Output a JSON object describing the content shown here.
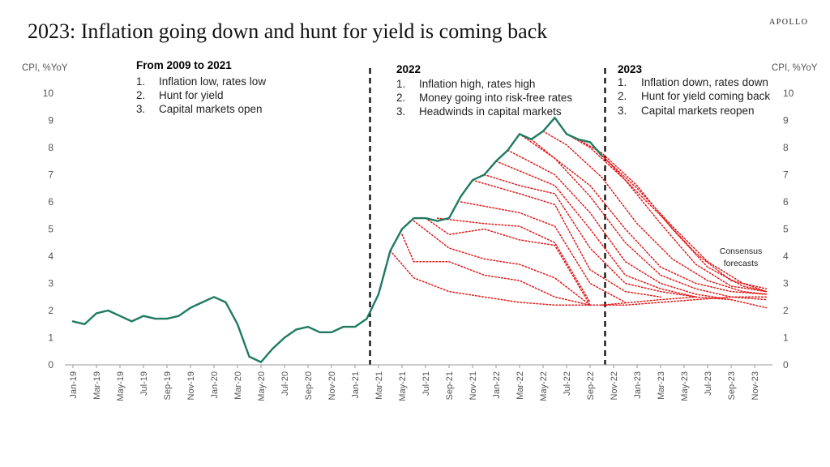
{
  "title": "2023: Inflation going down and hunt for yield is coming back",
  "brand": "APOLLO",
  "colors": {
    "actual": "#1f7a62",
    "forecast": "#e01a1a",
    "text": "#222222",
    "axis": "#777777",
    "divider": "#000000"
  },
  "chart_data": {
    "type": "line",
    "ylabel_left": "CPI, %YoY",
    "ylabel_right": "CPI, %YoY",
    "ylim": [
      0,
      10
    ],
    "yticks": [
      0,
      1,
      2,
      3,
      4,
      5,
      6,
      7,
      8,
      9,
      10
    ],
    "x_range": [
      "2019-01",
      "2023-12"
    ],
    "x_tick_labels": [
      "Jan-19",
      "Mar-19",
      "May-19",
      "Jul-19",
      "Sep-19",
      "Nov-19",
      "Jan-20",
      "Mar-20",
      "May-20",
      "Jul-20",
      "Sep-20",
      "Nov-20",
      "Jan-21",
      "Mar-21",
      "May-21",
      "Jul-21",
      "Sep-21",
      "Nov-21",
      "Jan-22",
      "Mar-22",
      "May-22",
      "Jul-22",
      "Sep-22",
      "Nov-22",
      "Jan-23",
      "Mar-23",
      "May-23",
      "Jul-23",
      "Sep-23",
      "Nov-23"
    ],
    "grid": false,
    "actual": {
      "x": [
        "2019-01",
        "2019-02",
        "2019-03",
        "2019-04",
        "2019-05",
        "2019-06",
        "2019-07",
        "2019-08",
        "2019-09",
        "2019-10",
        "2019-11",
        "2019-12",
        "2020-01",
        "2020-02",
        "2020-03",
        "2020-04",
        "2020-05",
        "2020-06",
        "2020-07",
        "2020-08",
        "2020-09",
        "2020-10",
        "2020-11",
        "2020-12",
        "2021-01",
        "2021-02",
        "2021-03",
        "2021-04",
        "2021-05",
        "2021-06",
        "2021-07",
        "2021-08",
        "2021-09",
        "2021-10",
        "2021-11",
        "2021-12",
        "2022-01",
        "2022-02",
        "2022-03",
        "2022-04",
        "2022-05",
        "2022-06",
        "2022-07",
        "2022-08",
        "2022-09",
        "2022-10"
      ],
      "y": [
        1.6,
        1.5,
        1.9,
        2.0,
        1.8,
        1.6,
        1.8,
        1.7,
        1.7,
        1.8,
        2.1,
        2.3,
        2.5,
        2.3,
        1.5,
        0.3,
        0.1,
        0.6,
        1.0,
        1.3,
        1.4,
        1.2,
        1.2,
        1.4,
        1.4,
        1.7,
        2.6,
        4.2,
        5.0,
        5.4,
        5.4,
        5.3,
        5.4,
        6.2,
        6.8,
        7.0,
        7.5,
        7.9,
        8.5,
        8.3,
        8.6,
        9.1,
        8.5,
        8.3,
        8.2,
        7.7
      ]
    },
    "forecasts": [
      {
        "x": [
          "2021-04",
          "2021-06",
          "2021-09",
          "2021-12",
          "2022-03",
          "2022-06",
          "2022-09"
        ],
        "y": [
          4.2,
          3.2,
          2.7,
          2.5,
          2.3,
          2.2,
          2.2
        ]
      },
      {
        "x": [
          "2021-05",
          "2021-06",
          "2021-09",
          "2021-12",
          "2022-03",
          "2022-06",
          "2022-09"
        ],
        "y": [
          4.8,
          3.8,
          3.8,
          3.3,
          3.1,
          2.5,
          2.2
        ]
      },
      {
        "x": [
          "2021-06",
          "2021-09",
          "2021-12",
          "2022-03",
          "2022-06",
          "2022-09"
        ],
        "y": [
          5.3,
          4.3,
          3.9,
          3.7,
          3.2,
          2.2
        ]
      },
      {
        "x": [
          "2021-07",
          "2021-09",
          "2021-12",
          "2022-03",
          "2022-06",
          "2022-09"
        ],
        "y": [
          5.4,
          4.8,
          5.0,
          4.6,
          4.4,
          2.2
        ]
      },
      {
        "x": [
          "2021-08",
          "2021-12",
          "2022-03",
          "2022-06",
          "2022-09"
        ],
        "y": [
          5.4,
          5.2,
          5.1,
          4.5,
          2.3
        ]
      },
      {
        "x": [
          "2021-10",
          "2022-03",
          "2022-06",
          "2022-09",
          "2022-12"
        ],
        "y": [
          6.0,
          5.6,
          5.1,
          3.0,
          2.3
        ]
      },
      {
        "x": [
          "2021-11",
          "2022-03",
          "2022-06",
          "2022-09",
          "2022-12",
          "2023-03"
        ],
        "y": [
          6.8,
          6.3,
          5.9,
          3.5,
          2.7,
          2.5
        ]
      },
      {
        "x": [
          "2021-12",
          "2022-03",
          "2022-06",
          "2022-09",
          "2022-12",
          "2023-03",
          "2023-06"
        ],
        "y": [
          7.0,
          6.6,
          6.3,
          4.3,
          3.0,
          2.7,
          2.5
        ]
      },
      {
        "x": [
          "2022-01",
          "2022-06",
          "2022-09",
          "2022-12",
          "2023-03",
          "2023-06"
        ],
        "y": [
          7.5,
          6.6,
          5.0,
          3.3,
          2.8,
          2.5
        ]
      },
      {
        "x": [
          "2022-02",
          "2022-06",
          "2022-09",
          "2022-12",
          "2023-03",
          "2023-06",
          "2023-09"
        ],
        "y": [
          7.9,
          7.0,
          5.6,
          3.8,
          3.0,
          2.6,
          2.4
        ]
      },
      {
        "x": [
          "2022-03",
          "2022-06",
          "2022-09",
          "2022-12",
          "2023-03",
          "2023-06",
          "2023-09",
          "2023-12"
        ],
        "y": [
          8.5,
          7.6,
          6.2,
          4.5,
          3.3,
          2.8,
          2.5,
          2.4
        ]
      },
      {
        "x": [
          "2022-04",
          "2022-06",
          "2022-09",
          "2022-12",
          "2023-03",
          "2023-06",
          "2023-09",
          "2023-12"
        ],
        "y": [
          8.3,
          7.6,
          6.6,
          5.0,
          3.6,
          3.0,
          2.7,
          2.6
        ]
      },
      {
        "x": [
          "2022-05",
          "2022-07",
          "2022-10",
          "2023-01",
          "2023-04",
          "2023-07",
          "2023-10",
          "2023-12"
        ],
        "y": [
          8.6,
          8.1,
          6.9,
          5.2,
          3.9,
          3.1,
          2.7,
          2.6
        ]
      },
      {
        "x": [
          "2022-07",
          "2022-09",
          "2022-12",
          "2023-03",
          "2023-06",
          "2023-09",
          "2023-12"
        ],
        "y": [
          8.5,
          8.0,
          6.8,
          5.2,
          3.7,
          2.9,
          2.7
        ]
      },
      {
        "x": [
          "2022-08",
          "2022-10",
          "2023-01",
          "2023-04",
          "2023-07",
          "2023-10",
          "2023-12"
        ],
        "y": [
          8.3,
          7.8,
          6.6,
          5.0,
          3.6,
          2.9,
          2.7
        ]
      },
      {
        "x": [
          "2022-09",
          "2022-12",
          "2023-03",
          "2023-06",
          "2023-09",
          "2023-12"
        ],
        "y": [
          8.2,
          6.8,
          5.5,
          4.1,
          3.1,
          2.8
        ]
      },
      {
        "x": [
          "2022-10",
          "2023-01",
          "2023-04",
          "2023-07",
          "2023-10",
          "2023-12"
        ],
        "y": [
          7.7,
          6.5,
          5.1,
          3.8,
          3.0,
          2.7
        ]
      },
      {
        "x": [
          "2022-09",
          "2022-12",
          "2023-03",
          "2023-06",
          "2023-09",
          "2023-12"
        ],
        "y": [
          2.2,
          2.2,
          2.3,
          2.4,
          2.5,
          2.5
        ]
      },
      {
        "x": [
          "2022-10",
          "2023-03",
          "2023-06",
          "2023-09",
          "2023-12"
        ],
        "y": [
          2.2,
          2.4,
          2.5,
          2.4,
          2.1
        ]
      }
    ],
    "dividers": [
      "2021-02",
      "2022-10"
    ],
    "sections": [
      {
        "heading": "From 2009 to 2021",
        "items": [
          "Inflation low, rates low",
          "Hunt for yield",
          "Capital markets open"
        ]
      },
      {
        "heading": "2022",
        "items": [
          "Inflation high, rates high",
          "Money going into risk-free rates",
          "Headwinds in capital markets"
        ]
      },
      {
        "heading": "2023",
        "items": [
          "Inflation down, rates down",
          "Hunt for yield coming back",
          "Capital markets reopen"
        ]
      }
    ],
    "annotation": [
      "Consensus",
      "forecasts"
    ]
  }
}
